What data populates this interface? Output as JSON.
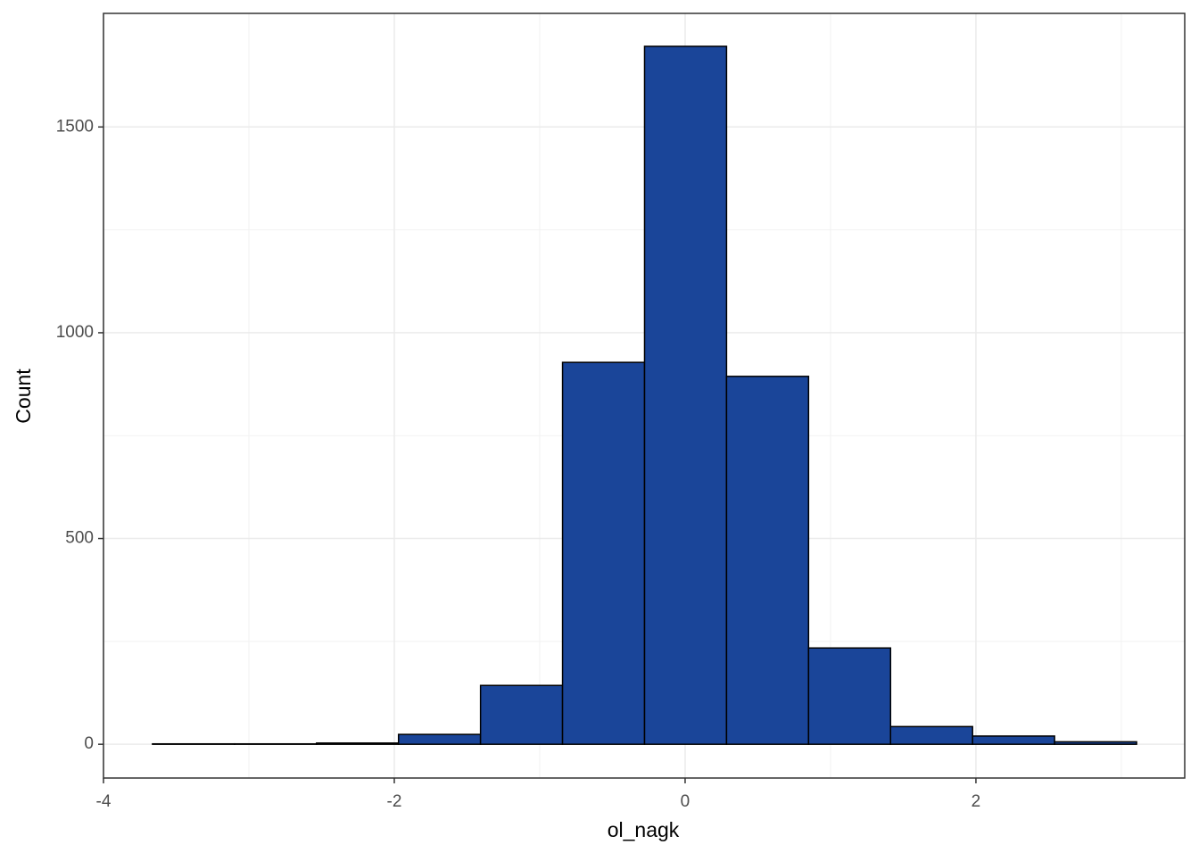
{
  "chart_data": {
    "type": "histogram",
    "x_label": "ol_nagk",
    "y_label": "Count",
    "bins": [
      -3.663,
      -3.099,
      -2.535,
      -1.971,
      -1.407,
      -0.843,
      -0.279,
      0.285,
      0.849,
      1.413,
      1.977,
      2.541,
      3.105
    ],
    "values": [
      1,
      1,
      3,
      24,
      143,
      928,
      1696,
      894,
      234,
      43,
      20,
      6
    ],
    "color": "#1a4599",
    "edge_color": "#000000",
    "xlim": [
      -4,
      3.436
    ],
    "ylim": [
      -82,
      1776
    ],
    "xticks": [
      -4,
      -2,
      0,
      2
    ],
    "yticks": [
      0,
      500,
      1000,
      1500
    ],
    "grid": true
  }
}
